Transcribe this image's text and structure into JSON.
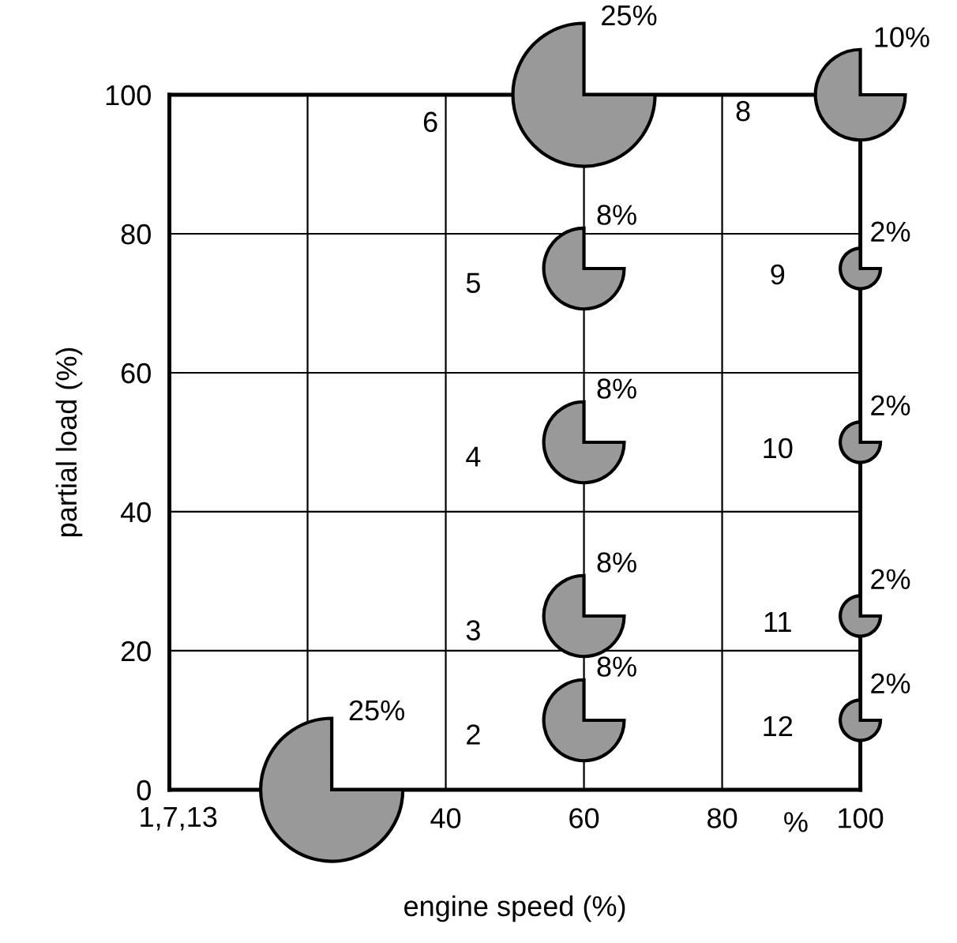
{
  "chart_data": {
    "type": "bubble",
    "xlabel": "engine speed (%)",
    "ylabel": "partial load (%)",
    "x": [
      23.5,
      60,
      60,
      60,
      60,
      60,
      100,
      100,
      100,
      100,
      100
    ],
    "series": [
      {
        "color": "#999999",
        "values": [
          0,
          10,
          25,
          50,
          75,
          100,
          100,
          75,
          50,
          25,
          10
        ],
        "sizes": [
          25,
          8,
          8,
          8,
          8,
          25,
          10,
          2,
          2,
          2,
          2
        ],
        "value_labels": [
          "25%",
          "8%",
          "8%",
          "8%",
          "8%",
          "25%",
          "10%",
          "2%",
          "2%",
          "2%",
          "2%"
        ]
      }
    ],
    "xlim": [
      0,
      100
    ],
    "ylim": [
      0,
      100
    ],
    "xticks": [
      {
        "value": 20,
        "label": null
      },
      40,
      60,
      80,
      100
    ],
    "yticks": [
      0,
      20,
      40,
      60,
      80,
      100
    ],
    "grid": true,
    "annotations": [
      "1,7,13",
      "2",
      "3",
      "4",
      "5",
      "6",
      "8",
      "9",
      "10",
      "11",
      "12",
      "%"
    ]
  }
}
